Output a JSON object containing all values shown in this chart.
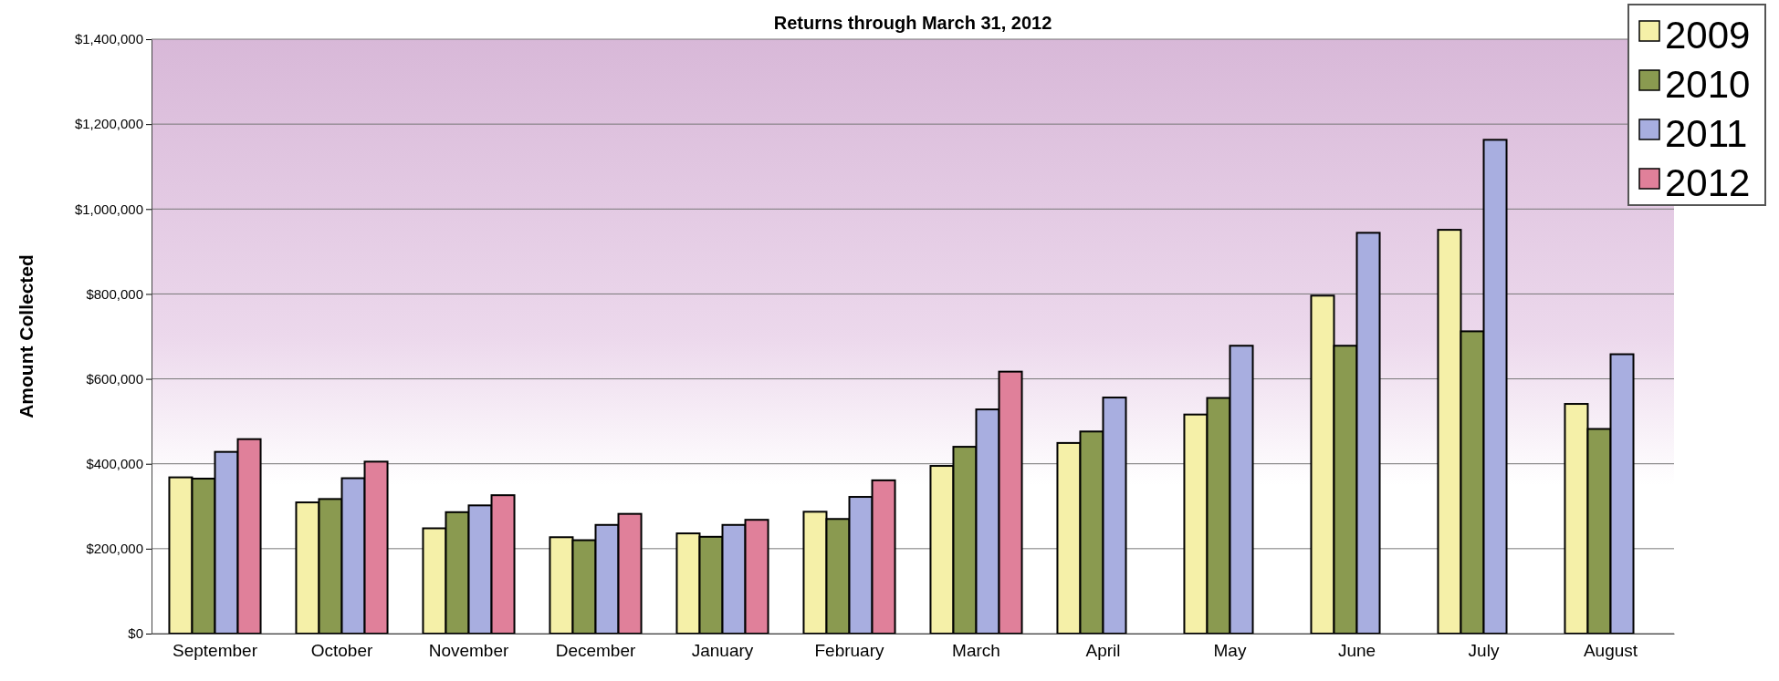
{
  "chart_data": {
    "type": "bar",
    "title": "Returns through March 31, 2012",
    "ylabel": "Amount Collected",
    "categories": [
      "September",
      "October",
      "November",
      "December",
      "January",
      "February",
      "March",
      "April",
      "May",
      "June",
      "July",
      "August"
    ],
    "series": [
      {
        "name": "2009",
        "color": "#f5f0a8",
        "values": [
          368000,
          309000,
          248000,
          227000,
          236000,
          287000,
          395000,
          449000,
          516000,
          796000,
          951000,
          541000
        ]
      },
      {
        "name": "2010",
        "color": "#8a9a50",
        "values": [
          365000,
          317000,
          286000,
          220000,
          228000,
          270000,
          440000,
          476000,
          555000,
          678000,
          712000,
          482000
        ]
      },
      {
        "name": "2011",
        "color": "#a8aee0",
        "values": [
          428000,
          366000,
          302000,
          256000,
          256000,
          322000,
          528000,
          556000,
          678000,
          944000,
          1163000,
          658000
        ]
      },
      {
        "name": "2012",
        "color": "#e0809a",
        "values": [
          458000,
          405000,
          326000,
          282000,
          268000,
          361000,
          617000,
          null,
          null,
          null,
          null,
          null
        ]
      }
    ],
    "ylim": [
      0,
      1400000
    ],
    "yticks": [
      {
        "value": 0,
        "label": "$0"
      },
      {
        "value": 200000,
        "label": "$200,000"
      },
      {
        "value": 400000,
        "label": "$400,000"
      },
      {
        "value": 600000,
        "label": "$600,000"
      },
      {
        "value": 800000,
        "label": "$800,000"
      },
      {
        "value": 1000000,
        "label": "$1,000,000"
      },
      {
        "value": 1200000,
        "label": "$1,200,000"
      },
      {
        "value": 1400000,
        "label": "$1,400,000"
      }
    ],
    "grid": "y",
    "legend": "top right"
  }
}
